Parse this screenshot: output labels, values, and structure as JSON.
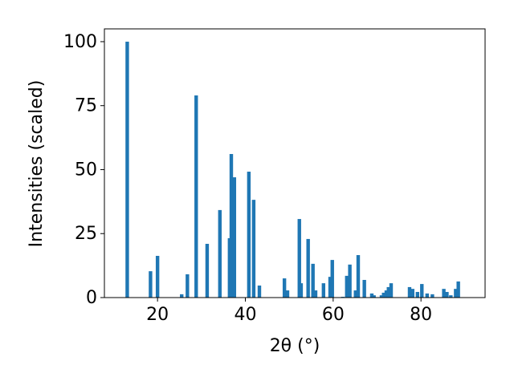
{
  "chart_data": {
    "type": "bar",
    "x_label": "2θ (°)",
    "y_label": "Intensities (scaled)",
    "color": "#1f77b4",
    "xlim": [
      7.9,
      94.6
    ],
    "ylim": [
      0,
      105
    ],
    "xticks": [
      20,
      40,
      60,
      80
    ],
    "yticks": [
      0,
      25,
      50,
      75,
      100
    ],
    "x": [
      13.1,
      18.4,
      20.0,
      25.5,
      26.8,
      28.8,
      31.3,
      34.2,
      36.4,
      36.8,
      37.5,
      40.8,
      41.9,
      43.2,
      48.9,
      49.6,
      52.3,
      52.7,
      54.3,
      55.4,
      56.0,
      57.8,
      59.3,
      59.8,
      62.2,
      63.1,
      63.8,
      65.1,
      65.7,
      67.1,
      68.8,
      69.3,
      71.0,
      71.5,
      72.1,
      72.6,
      73.2,
      77.4,
      78.1,
      79.2,
      80.2,
      81.4,
      82.6,
      85.2,
      85.9,
      86.8,
      87.9,
      88.5
    ],
    "values": [
      100,
      10.3,
      16.3,
      1.3,
      9.1,
      79,
      21,
      34.2,
      23.2,
      56.1,
      47,
      49.2,
      38.2,
      4.7,
      7.5,
      2.8,
      30.7,
      5.6,
      22.9,
      13.2,
      2.8,
      5.6,
      8.1,
      14.7,
      0.3,
      8.5,
      12.9,
      2.8,
      16.6,
      6.9,
      1.6,
      0.9,
      0.9,
      1.9,
      2.8,
      4.1,
      5.6,
      4.1,
      3.4,
      2.2,
      5.3,
      1.6,
      1.3,
      3.4,
      2.2,
      0.9,
      3.4,
      6.3
    ]
  }
}
